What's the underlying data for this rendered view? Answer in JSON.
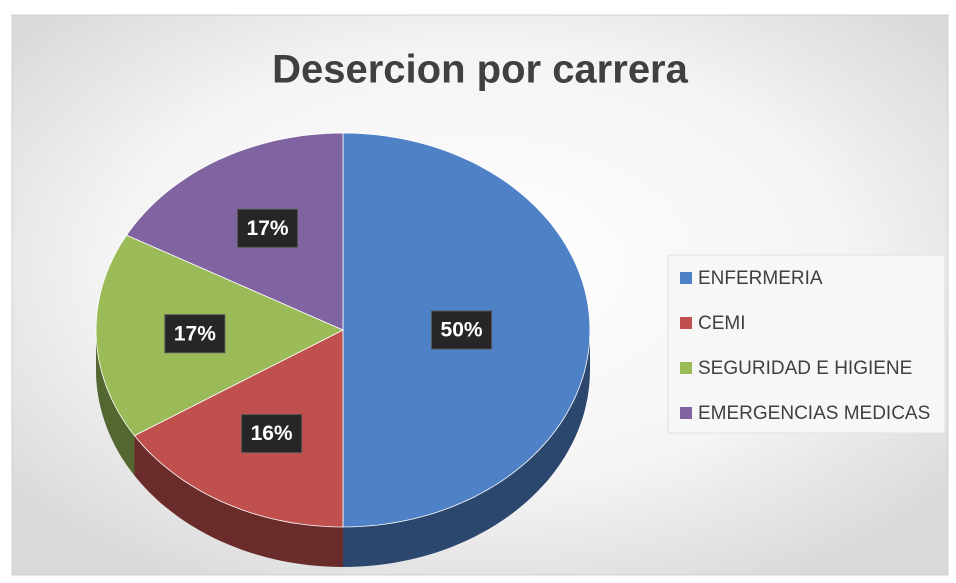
{
  "chart_data": {
    "type": "pie",
    "title": "Desercion por carrera",
    "categories": [
      "ENFERMERIA",
      "CEMI",
      "SEGURIDAD E HIGIENE",
      "EMERGENCIAS MEDICAS"
    ],
    "values": [
      50,
      16,
      17,
      17
    ],
    "value_labels": [
      "50%",
      "16%",
      "17%",
      "17%"
    ],
    "colors": [
      "#4f81c7",
      "#c0504d",
      "#9bbb59",
      "#8064a2"
    ],
    "legend": "right"
  }
}
